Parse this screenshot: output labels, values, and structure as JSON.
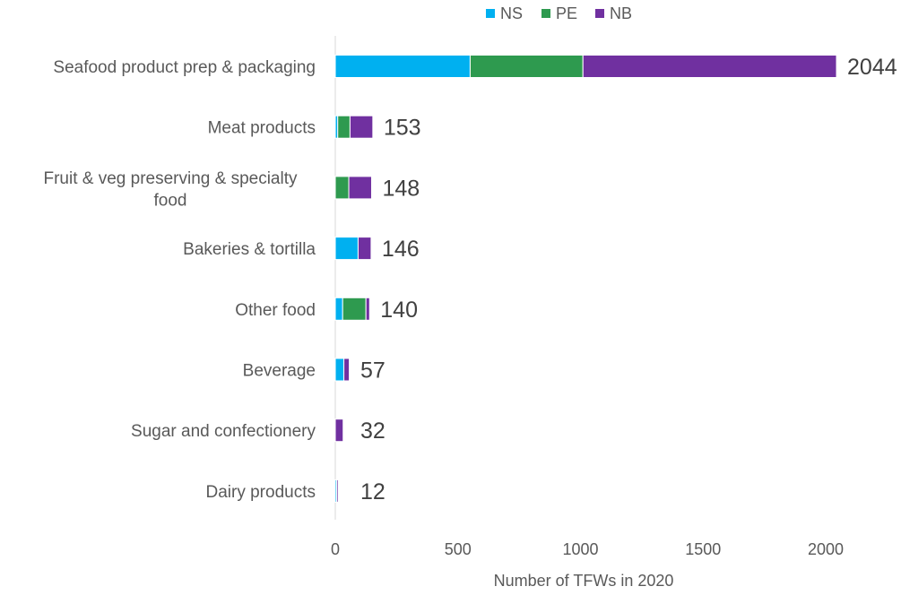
{
  "chart_data": {
    "type": "bar",
    "orientation": "horizontal",
    "stacked": true,
    "categories": [
      "Seafood product prep & packaging",
      "Meat products",
      "Fruit & veg preserving & specialty food",
      "Bakeries & tortilla",
      "Other food",
      "Beverage",
      "Sugar and confectionery",
      "Dairy products"
    ],
    "series": [
      {
        "name": "NS",
        "color": "#00b0f0",
        "values": [
          550,
          10,
          0,
          93,
          30,
          35,
          0,
          6
        ]
      },
      {
        "name": "PE",
        "color": "#2e9a4f",
        "values": [
          460,
          50,
          55,
          0,
          95,
          0,
          0,
          0
        ]
      },
      {
        "name": "NB",
        "color": "#7030a0",
        "values": [
          1034,
          93,
          93,
          53,
          15,
          22,
          32,
          6
        ]
      }
    ],
    "totals": [
      2044,
      153,
      148,
      146,
      140,
      57,
      32,
      12
    ],
    "title": "",
    "xlabel": "Number of TFWs in 2020",
    "ylabel": "",
    "xlim": [
      0,
      2000
    ],
    "xticks": [
      0,
      500,
      1000,
      1500,
      2000
    ],
    "grid": false,
    "legend_position": "top"
  }
}
